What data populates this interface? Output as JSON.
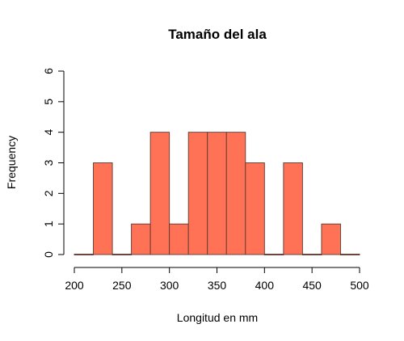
{
  "chart_data": {
    "type": "bar",
    "title": "Tamaño del ala",
    "xlabel": "Longitud en mm",
    "ylabel": "Frequency",
    "bin_edges": [
      200,
      220,
      240,
      260,
      280,
      300,
      320,
      340,
      360,
      380,
      400,
      420,
      440,
      460,
      480,
      500
    ],
    "values": [
      0,
      3,
      0,
      1,
      4,
      1,
      4,
      4,
      4,
      3,
      0,
      3,
      0,
      1,
      0
    ],
    "xlim": [
      200,
      500
    ],
    "ylim": [
      0,
      6
    ],
    "x_ticks": [
      "200",
      "250",
      "300",
      "350",
      "400",
      "450",
      "500"
    ],
    "y_ticks": [
      "0",
      "1",
      "2",
      "3",
      "4",
      "5",
      "6"
    ],
    "grid": false,
    "legend": "none",
    "bar_color": "#ff7256"
  }
}
